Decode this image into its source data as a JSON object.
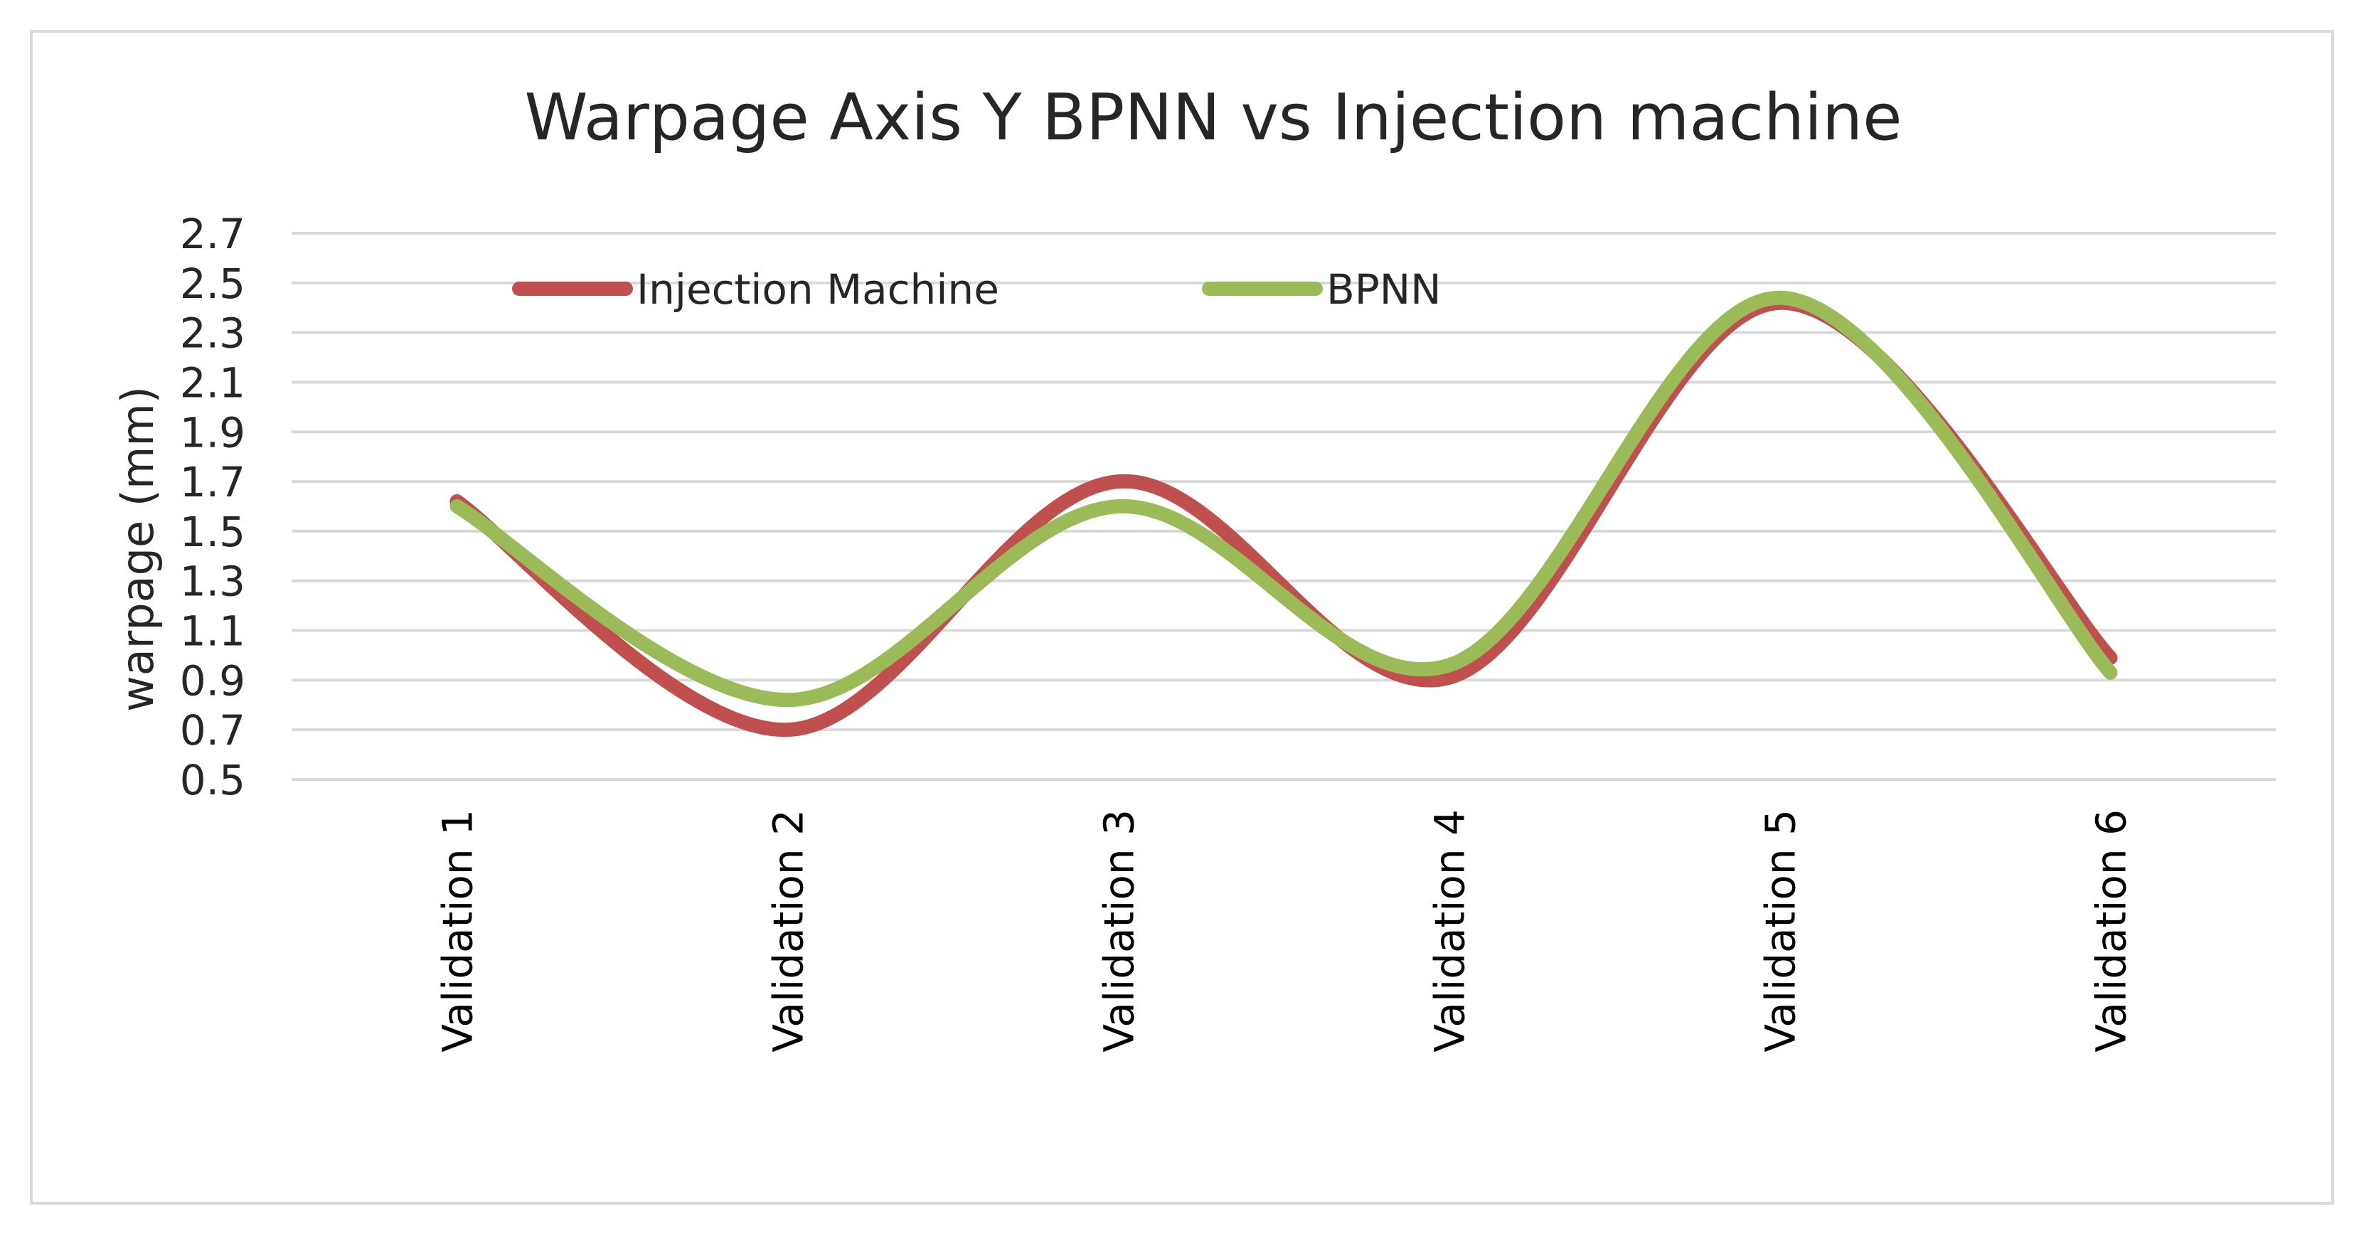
{
  "chart_data": {
    "type": "line",
    "title": "Warpage  Axis Y BPNN vs Injection machine",
    "xlabel": "",
    "ylabel": "warpage (mm)",
    "categories": [
      "Validation 1",
      "Validation 2",
      "Validation 3",
      "Validation 4",
      "Validation 5",
      "Validation 6"
    ],
    "ylim": [
      0.5,
      2.7
    ],
    "yticks": [
      "0.5",
      "0.7",
      "0.9",
      "1.1",
      "1.3",
      "1.5",
      "1.7",
      "1.9",
      "2.1",
      "2.3",
      "2.5",
      "2.7"
    ],
    "grid": true,
    "smooth": true,
    "legend_position": "top-left",
    "series": [
      {
        "name": "Injection Machine",
        "color": "#c0504d",
        "values": [
          1.62,
          0.7,
          1.7,
          0.91,
          2.42,
          0.99
        ]
      },
      {
        "name": "BPNN",
        "color": "#9bbb59",
        "values": [
          1.6,
          0.82,
          1.6,
          0.96,
          2.44,
          0.93
        ]
      }
    ]
  }
}
